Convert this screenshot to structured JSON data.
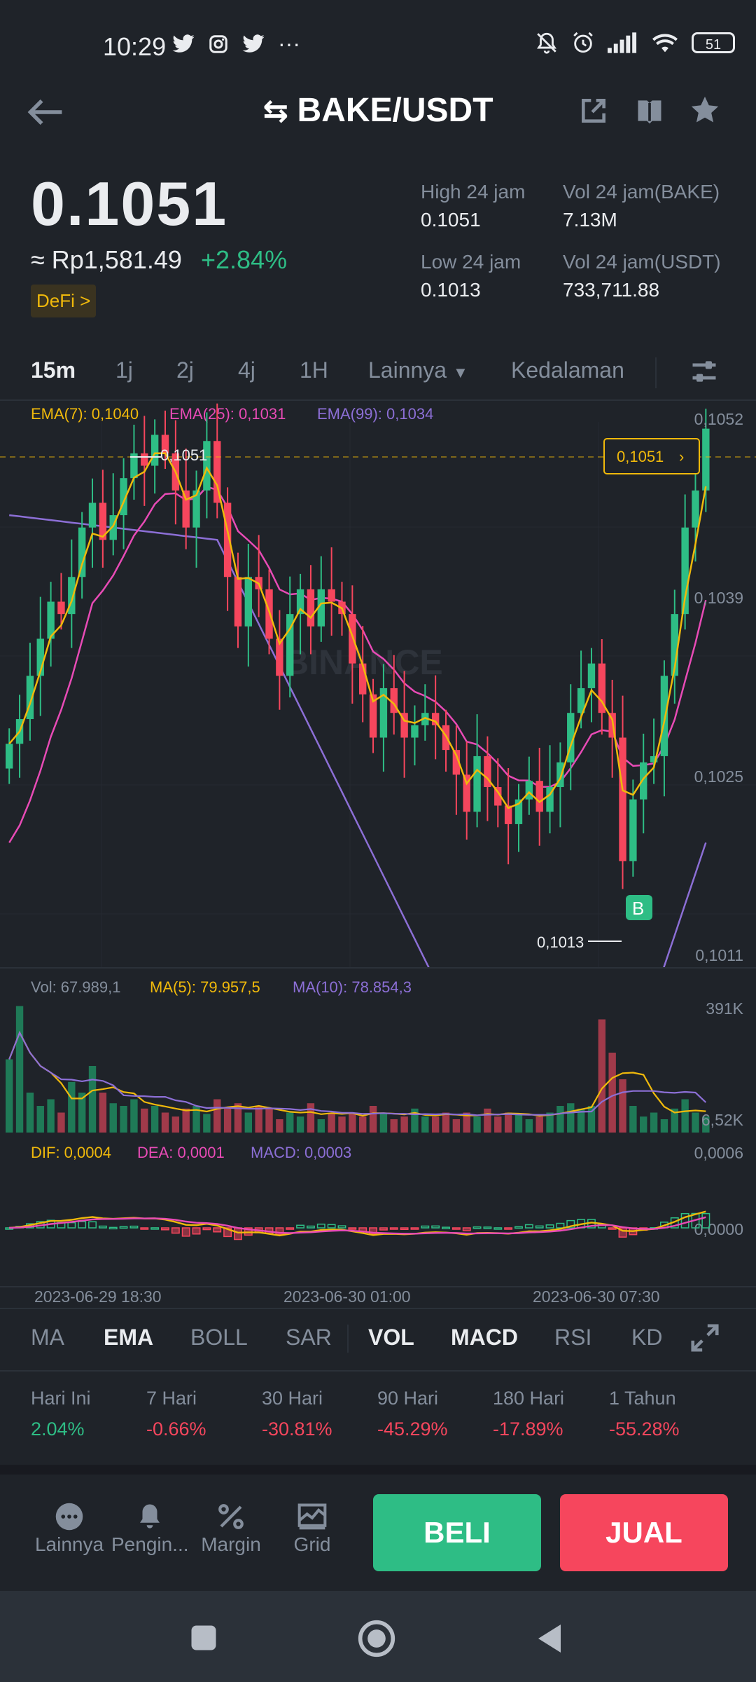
{
  "status_bar": {
    "time": "10:29",
    "dots": "···",
    "battery": "51"
  },
  "header": {
    "pair": "BAKE/USDT"
  },
  "ticker": {
    "price": "0.1051",
    "fiat_price": "≈ Rp1,581.49",
    "change": "+2.84%",
    "tag": "DeFi >",
    "high_label": "High 24 jam",
    "high_value": "0.1051",
    "low_label": "Low 24 jam",
    "low_value": "0.1013",
    "vol_base_label": "Vol 24 jam(BAKE)",
    "vol_base_value": "7.13M",
    "vol_quote_label": "Vol 24 jam(USDT)",
    "vol_quote_value": "733,711.88"
  },
  "timeframes": [
    "15m",
    "1j",
    "2j",
    "4j",
    "1H",
    "Lainnya",
    "Kedalaman"
  ],
  "chart": {
    "ema7": "EMA(7): 0,1040",
    "ema25": "EMA(25): 0,1031",
    "ema99": "EMA(99): 0,1034",
    "y_ticks": [
      "0,1052",
      "0,1039",
      "0,1025",
      "0,1011"
    ],
    "high_marker": "0,1051",
    "low_marker": "0,1013",
    "current_price_tag": "0,1051",
    "watermark": "BINANCE",
    "buy_marker": "B",
    "colors": {
      "up": "#2ebd85",
      "down": "#f6465d",
      "ema7": "#f0b90b",
      "ema25": "#e84bb6",
      "ema99": "#8c6fd6"
    }
  },
  "volume": {
    "vol": "Vol: 67.989,1",
    "ma5": "MA(5): 79.957,5",
    "ma10": "MA(10): 78.854,3",
    "y_top": "391K",
    "y_bottom": "6,52K"
  },
  "macd": {
    "dif": "DIF: 0,0004",
    "dea": "DEA: 0,0001",
    "macd": "MACD: 0,0003",
    "y_top": "0,0006",
    "y_mid": "0,0000"
  },
  "time_axis": [
    "2023-06-29 18:30",
    "2023-06-30 01:00",
    "2023-06-30 07:30"
  ],
  "indicator_tabs": [
    "MA",
    "EMA",
    "BOLL",
    "SAR",
    "VOL",
    "MACD",
    "RSI",
    "KD"
  ],
  "performance": [
    {
      "label": "Hari Ini",
      "value": "2.04%"
    },
    {
      "label": "7 Hari",
      "value": "-0.66%"
    },
    {
      "label": "30 Hari",
      "value": "-30.81%"
    },
    {
      "label": "90 Hari",
      "value": "-45.29%"
    },
    {
      "label": "180 Hari",
      "value": "-17.89%"
    },
    {
      "label": "1 Tahun",
      "value": "-55.28%"
    }
  ],
  "bottom_actions": {
    "more": "Lainnya",
    "alert": "Pengin...",
    "margin": "Margin",
    "grid": "Grid",
    "buy": "BELI",
    "sell": "JUAL"
  }
}
